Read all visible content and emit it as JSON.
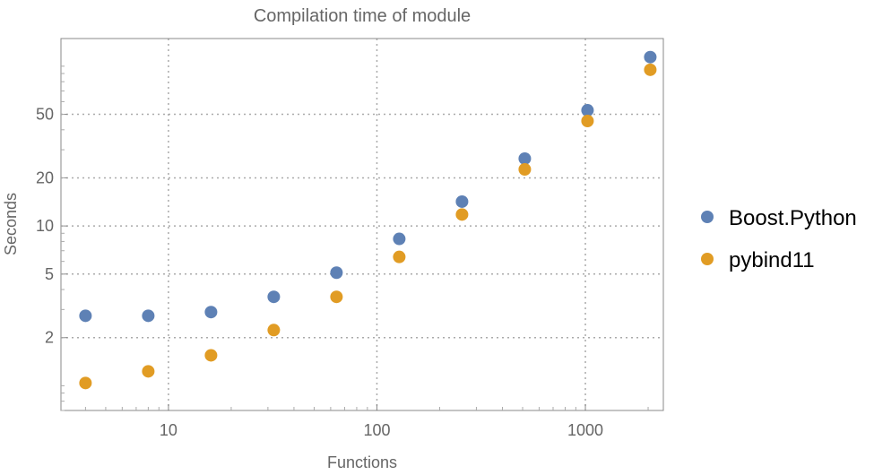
{
  "chart_data": {
    "type": "scatter",
    "title": "Compilation time of module",
    "xlabel": "Functions",
    "ylabel": "Seconds",
    "xscale": "log",
    "yscale": "log",
    "xlim": [
      3.05,
      2366
    ],
    "ylim": [
      0.7,
      149
    ],
    "x_ticks": [
      10,
      100,
      1000
    ],
    "x_tick_labels": [
      "10",
      "100",
      "1000"
    ],
    "y_ticks": [
      2,
      5,
      10,
      20,
      50
    ],
    "y_tick_labels": [
      "2",
      "5",
      "10",
      "20",
      "50"
    ],
    "grid": true,
    "legend_position": "right",
    "x": [
      4,
      8,
      16,
      32,
      64,
      128,
      256,
      512,
      1024,
      2048
    ],
    "series": [
      {
        "name": "Boost.Python",
        "color": "#5E81B5",
        "values": [
          2.74,
          2.74,
          2.89,
          3.6,
          5.1,
          8.3,
          14.2,
          26.4,
          53,
          114
        ]
      },
      {
        "name": "pybind11",
        "color": "#E19C24",
        "values": [
          1.04,
          1.23,
          1.55,
          2.23,
          3.6,
          6.4,
          11.8,
          22.6,
          45.4,
          95
        ]
      }
    ]
  }
}
